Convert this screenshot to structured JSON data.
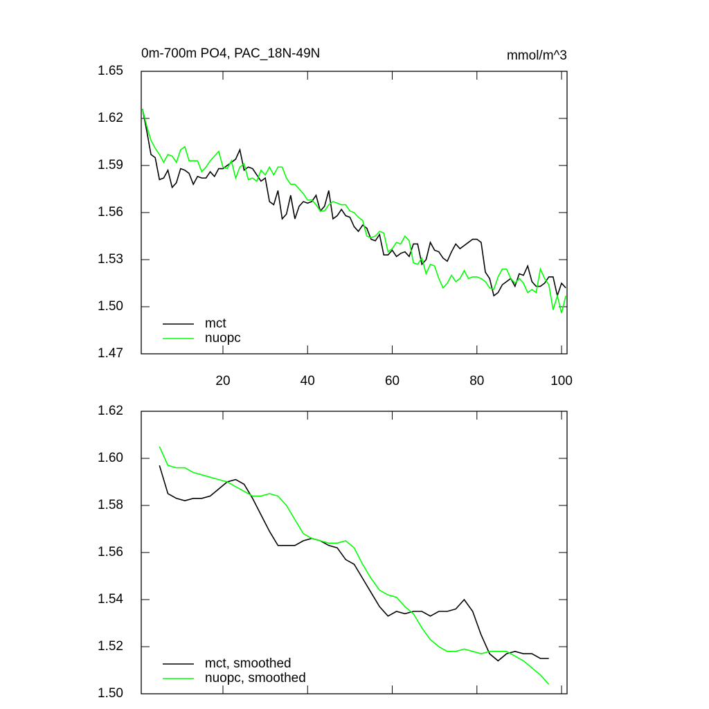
{
  "chart_data": [
    {
      "type": "line",
      "title": "0m-700m PO4, PAC_18N-49N",
      "units": "mmol/m^3",
      "x": [
        1,
        2,
        3,
        4,
        5,
        6,
        7,
        8,
        9,
        10,
        11,
        12,
        13,
        14,
        15,
        16,
        17,
        18,
        19,
        20,
        21,
        22,
        23,
        24,
        25,
        26,
        27,
        28,
        29,
        30,
        31,
        32,
        33,
        34,
        35,
        36,
        37,
        38,
        39,
        40,
        41,
        42,
        43,
        44,
        45,
        46,
        47,
        48,
        49,
        50,
        51,
        52,
        53,
        54,
        55,
        56,
        57,
        58,
        59,
        60,
        61,
        62,
        63,
        64,
        65,
        66,
        67,
        68,
        69,
        70,
        71,
        72,
        73,
        74,
        75,
        76,
        77,
        78,
        79,
        80,
        81,
        82,
        83,
        84,
        85,
        86,
        87,
        88,
        89,
        90,
        91,
        92,
        93,
        94,
        95,
        96,
        97,
        98,
        99,
        100,
        101
      ],
      "series": [
        {
          "name": "mct",
          "color": "#000000",
          "values": [
            1.626,
            1.612,
            1.597,
            1.595,
            1.581,
            1.582,
            1.587,
            1.576,
            1.579,
            1.588,
            1.587,
            1.585,
            1.578,
            1.583,
            1.582,
            1.582,
            1.586,
            1.583,
            1.588,
            1.588,
            1.59,
            1.592,
            1.594,
            1.6,
            1.587,
            1.589,
            1.588,
            1.584,
            1.58,
            1.582,
            1.567,
            1.565,
            1.574,
            1.556,
            1.559,
            1.571,
            1.556,
            1.564,
            1.567,
            1.566,
            1.567,
            1.571,
            1.561,
            1.564,
            1.574,
            1.556,
            1.558,
            1.562,
            1.558,
            1.557,
            1.551,
            1.548,
            1.552,
            1.55,
            1.543,
            1.542,
            1.546,
            1.533,
            1.533,
            1.536,
            1.532,
            1.534,
            1.535,
            1.532,
            1.54,
            1.54,
            1.527,
            1.53,
            1.541,
            1.536,
            1.535,
            1.531,
            1.529,
            1.535,
            1.54,
            1.537,
            1.539,
            1.541,
            1.543,
            1.543,
            1.541,
            1.522,
            1.518,
            1.507,
            1.509,
            1.514,
            1.516,
            1.518,
            1.513,
            1.521,
            1.52,
            1.526,
            1.516,
            1.513,
            1.513,
            1.515,
            1.519,
            1.519,
            1.507,
            1.515,
            1.512
          ]
        },
        {
          "name": "nuopc",
          "color": "#00ff00",
          "values": [
            1.626,
            1.615,
            1.606,
            1.601,
            1.597,
            1.592,
            1.597,
            1.596,
            1.592,
            1.6,
            1.602,
            1.593,
            1.593,
            1.593,
            1.586,
            1.589,
            1.593,
            1.596,
            1.599,
            1.589,
            1.588,
            1.593,
            1.582,
            1.589,
            1.591,
            1.581,
            1.582,
            1.58,
            1.587,
            1.584,
            1.589,
            1.584,
            1.589,
            1.589,
            1.582,
            1.578,
            1.578,
            1.575,
            1.572,
            1.568,
            1.568,
            1.565,
            1.561,
            1.561,
            1.565,
            1.567,
            1.566,
            1.565,
            1.565,
            1.561,
            1.56,
            1.557,
            1.555,
            1.545,
            1.544,
            1.545,
            1.548,
            1.547,
            1.535,
            1.537,
            1.541,
            1.54,
            1.545,
            1.542,
            1.528,
            1.527,
            1.531,
            1.521,
            1.527,
            1.526,
            1.518,
            1.512,
            1.515,
            1.52,
            1.516,
            1.518,
            1.523,
            1.518,
            1.519,
            1.519,
            1.518,
            1.516,
            1.512,
            1.511,
            1.519,
            1.524,
            1.524,
            1.518,
            1.515,
            1.518,
            1.515,
            1.509,
            1.511,
            1.509,
            1.524,
            1.518,
            1.514,
            1.498,
            1.507,
            1.496,
            1.507
          ]
        }
      ],
      "xlim": [
        0.7,
        101.3
      ],
      "xticks": [
        20,
        40,
        60,
        80,
        100
      ],
      "ylim": [
        1.47,
        1.65
      ],
      "yticks": [
        1.47,
        {
          "value": 1.5,
          "label": "1.50"
        },
        1.53,
        1.56,
        1.59,
        1.62,
        1.65
      ],
      "legend": "lower left"
    },
    {
      "type": "line",
      "x": [
        5,
        7,
        9,
        11,
        13,
        15,
        17,
        19,
        21,
        23,
        25,
        27,
        29,
        31,
        33,
        35,
        37,
        39,
        41,
        43,
        45,
        47,
        49,
        51,
        53,
        55,
        57,
        59,
        61,
        63,
        65,
        67,
        69,
        71,
        73,
        75,
        77,
        79,
        81,
        83,
        85,
        87,
        89,
        91,
        93,
        95,
        97
      ],
      "series": [
        {
          "name": "mct, smoothed",
          "color": "#000000",
          "values": [
            1.597,
            1.585,
            1.583,
            1.582,
            1.583,
            1.583,
            1.584,
            1.587,
            1.59,
            1.591,
            1.589,
            1.583,
            1.576,
            1.569,
            1.563,
            1.563,
            1.563,
            1.565,
            1.566,
            1.565,
            1.563,
            1.562,
            1.557,
            1.555,
            1.549,
            1.543,
            1.537,
            1.533,
            1.535,
            1.534,
            1.535,
            1.535,
            1.533,
            1.535,
            1.535,
            1.536,
            1.54,
            1.535,
            1.525,
            1.517,
            1.514,
            1.517,
            1.518,
            1.517,
            1.517,
            1.515,
            1.515
          ]
        },
        {
          "name": "nuopc, smoothed",
          "color": "#00ff00",
          "values": [
            1.605,
            1.597,
            1.596,
            1.596,
            1.594,
            1.593,
            1.592,
            1.591,
            1.59,
            1.588,
            1.586,
            1.584,
            1.584,
            1.585,
            1.584,
            1.58,
            1.574,
            1.568,
            1.566,
            1.565,
            1.564,
            1.564,
            1.565,
            1.562,
            1.555,
            1.549,
            1.544,
            1.542,
            1.541,
            1.537,
            1.534,
            1.528,
            1.523,
            1.52,
            1.518,
            1.518,
            1.519,
            1.518,
            1.517,
            1.518,
            1.518,
            1.518,
            1.516,
            1.514,
            1.511,
            1.508,
            1.504
          ]
        }
      ],
      "xlim": [
        0.7,
        101.3
      ],
      "xticks": [
        20,
        40,
        60,
        80,
        100
      ],
      "ylim": [
        1.5,
        1.62
      ],
      "yticks": [
        {
          "value": 1.5,
          "label": "1.50"
        },
        1.52,
        1.54,
        1.56,
        1.58,
        {
          "value": 1.6,
          "label": "1.60"
        },
        1.62
      ],
      "legend": "lower left"
    }
  ]
}
